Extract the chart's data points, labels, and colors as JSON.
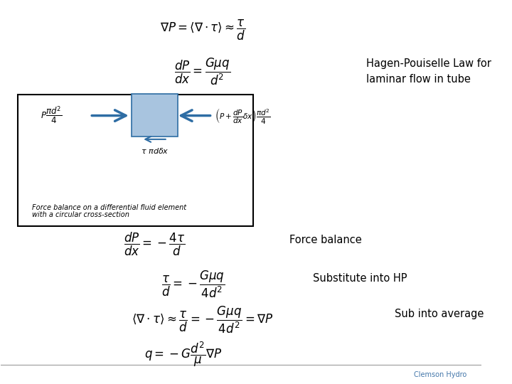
{
  "bg_color": "#ffffff",
  "eq1": "$\\nabla P = \\langle \\nabla \\cdot \\tau \\rangle \\approx \\dfrac{\\tau}{d}$",
  "eq2": "$\\dfrac{dP}{dx} = \\dfrac{G\\mu q}{d^2}$",
  "label_hp": "Hagen-Pouiselle Law for\nlaminar flow in tube",
  "eq3": "$\\dfrac{dP}{dx} = -\\dfrac{4\\tau}{d}$",
  "label_fb": "Force balance",
  "eq4": "$\\dfrac{\\tau}{d} = -\\dfrac{G\\mu q}{4d^2}$",
  "label_sub": "Substitute into HP",
  "eq5": "$\\langle \\nabla \\cdot \\tau \\rangle \\approx \\dfrac{\\tau}{d} = -\\dfrac{G\\mu q}{4d^2} = \\nabla P$",
  "label_avg": "Sub into average",
  "eq6": "$q = -G\\dfrac{d^2}{\\mu}\\nabla P$",
  "footer": "Clemson Hydro",
  "box_label1": "Force balance on a differential fluid element",
  "box_label2": "with a circular cross-section"
}
